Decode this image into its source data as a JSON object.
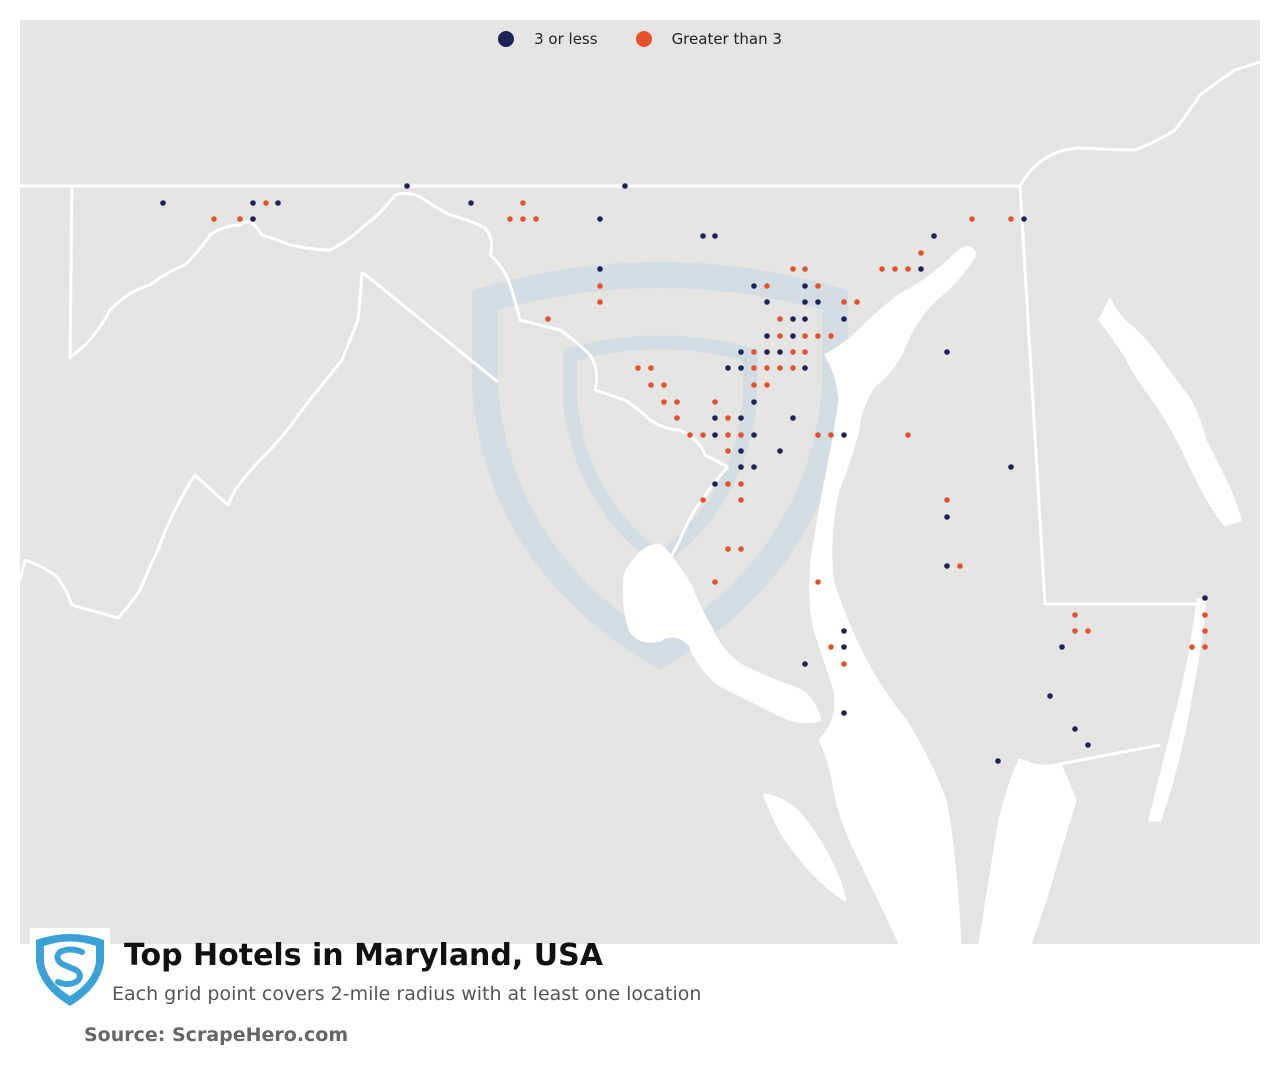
{
  "title": "Top Hotels in Maryland, USA",
  "subtitle": "Each grid point covers 2-mile radius with at least one location",
  "source": "Source: ScrapeHero.com",
  "colors": {
    "land": "#e4e4e2",
    "water": "#ffffff",
    "border": "#ffffff",
    "low": "#1c2358",
    "high": "#e8502a",
    "watermark": "#c5d6e2",
    "logo": "#3aa2d8"
  },
  "legend": [
    {
      "label": "3 or less",
      "key": "low"
    },
    {
      "label": "Greater than 3",
      "key": "high"
    }
  ],
  "points_low": [
    [
      163,
      203
    ],
    [
      253,
      203
    ],
    [
      278,
      203
    ],
    [
      253,
      219
    ],
    [
      407,
      186
    ],
    [
      471,
      203
    ],
    [
      625,
      186
    ],
    [
      600,
      219
    ],
    [
      703,
      236
    ],
    [
      715,
      236
    ],
    [
      600,
      269
    ],
    [
      754,
      286
    ],
    [
      805,
      286
    ],
    [
      767,
      302
    ],
    [
      805,
      302
    ],
    [
      818,
      302
    ],
    [
      793,
      319
    ],
    [
      805,
      319
    ],
    [
      844,
      319
    ],
    [
      767,
      336
    ],
    [
      793,
      336
    ],
    [
      741,
      352
    ],
    [
      767,
      352
    ],
    [
      780,
      352
    ],
    [
      728,
      368
    ],
    [
      741,
      368
    ],
    [
      805,
      368
    ],
    [
      754,
      402
    ],
    [
      793,
      418
    ],
    [
      715,
      418
    ],
    [
      741,
      418
    ],
    [
      715,
      435
    ],
    [
      754,
      435
    ],
    [
      844,
      435
    ],
    [
      741,
      451
    ],
    [
      780,
      451
    ],
    [
      741,
      467
    ],
    [
      754,
      467
    ],
    [
      715,
      484
    ],
    [
      934,
      236
    ],
    [
      921,
      269
    ],
    [
      1024,
      219
    ],
    [
      947,
      352
    ],
    [
      1011,
      467
    ],
    [
      947,
      517
    ],
    [
      947,
      566
    ],
    [
      1205,
      598
    ],
    [
      844,
      631
    ],
    [
      844,
      647
    ],
    [
      805,
      664
    ],
    [
      1062,
      647
    ],
    [
      844,
      713
    ],
    [
      1050,
      696
    ],
    [
      1075,
      729
    ],
    [
      1088,
      745
    ],
    [
      998,
      761
    ]
  ],
  "points_high": [
    [
      214,
      219
    ],
    [
      240,
      219
    ],
    [
      266,
      203
    ],
    [
      523,
      203
    ],
    [
      510,
      219
    ],
    [
      523,
      219
    ],
    [
      536,
      219
    ],
    [
      600,
      286
    ],
    [
      600,
      302
    ],
    [
      548,
      319
    ],
    [
      793,
      269
    ],
    [
      805,
      269
    ],
    [
      767,
      286
    ],
    [
      818,
      286
    ],
    [
      844,
      302
    ],
    [
      857,
      302
    ],
    [
      780,
      319
    ],
    [
      780,
      336
    ],
    [
      805,
      336
    ],
    [
      818,
      336
    ],
    [
      831,
      336
    ],
    [
      754,
      352
    ],
    [
      793,
      352
    ],
    [
      805,
      352
    ],
    [
      638,
      368
    ],
    [
      651,
      368
    ],
    [
      754,
      368
    ],
    [
      767,
      368
    ],
    [
      780,
      368
    ],
    [
      793,
      368
    ],
    [
      651,
      385
    ],
    [
      664,
      385
    ],
    [
      754,
      385
    ],
    [
      767,
      385
    ],
    [
      664,
      402
    ],
    [
      677,
      402
    ],
    [
      715,
      402
    ],
    [
      677,
      418
    ],
    [
      728,
      418
    ],
    [
      690,
      435
    ],
    [
      703,
      435
    ],
    [
      728,
      435
    ],
    [
      741,
      435
    ],
    [
      818,
      435
    ],
    [
      831,
      435
    ],
    [
      728,
      451
    ],
    [
      728,
      484
    ],
    [
      741,
      484
    ],
    [
      703,
      500
    ],
    [
      741,
      500
    ],
    [
      728,
      549
    ],
    [
      741,
      549
    ],
    [
      715,
      582
    ],
    [
      818,
      582
    ],
    [
      882,
      269
    ],
    [
      895,
      269
    ],
    [
      908,
      269
    ],
    [
      921,
      253
    ],
    [
      972,
      219
    ],
    [
      1011,
      219
    ],
    [
      908,
      435
    ],
    [
      947,
      500
    ],
    [
      960,
      566
    ],
    [
      1075,
      615
    ],
    [
      1075,
      631
    ],
    [
      1088,
      631
    ],
    [
      1205,
      615
    ],
    [
      1205,
      631
    ],
    [
      1192,
      647
    ],
    [
      1205,
      647
    ],
    [
      831,
      647
    ],
    [
      844,
      664
    ]
  ]
}
